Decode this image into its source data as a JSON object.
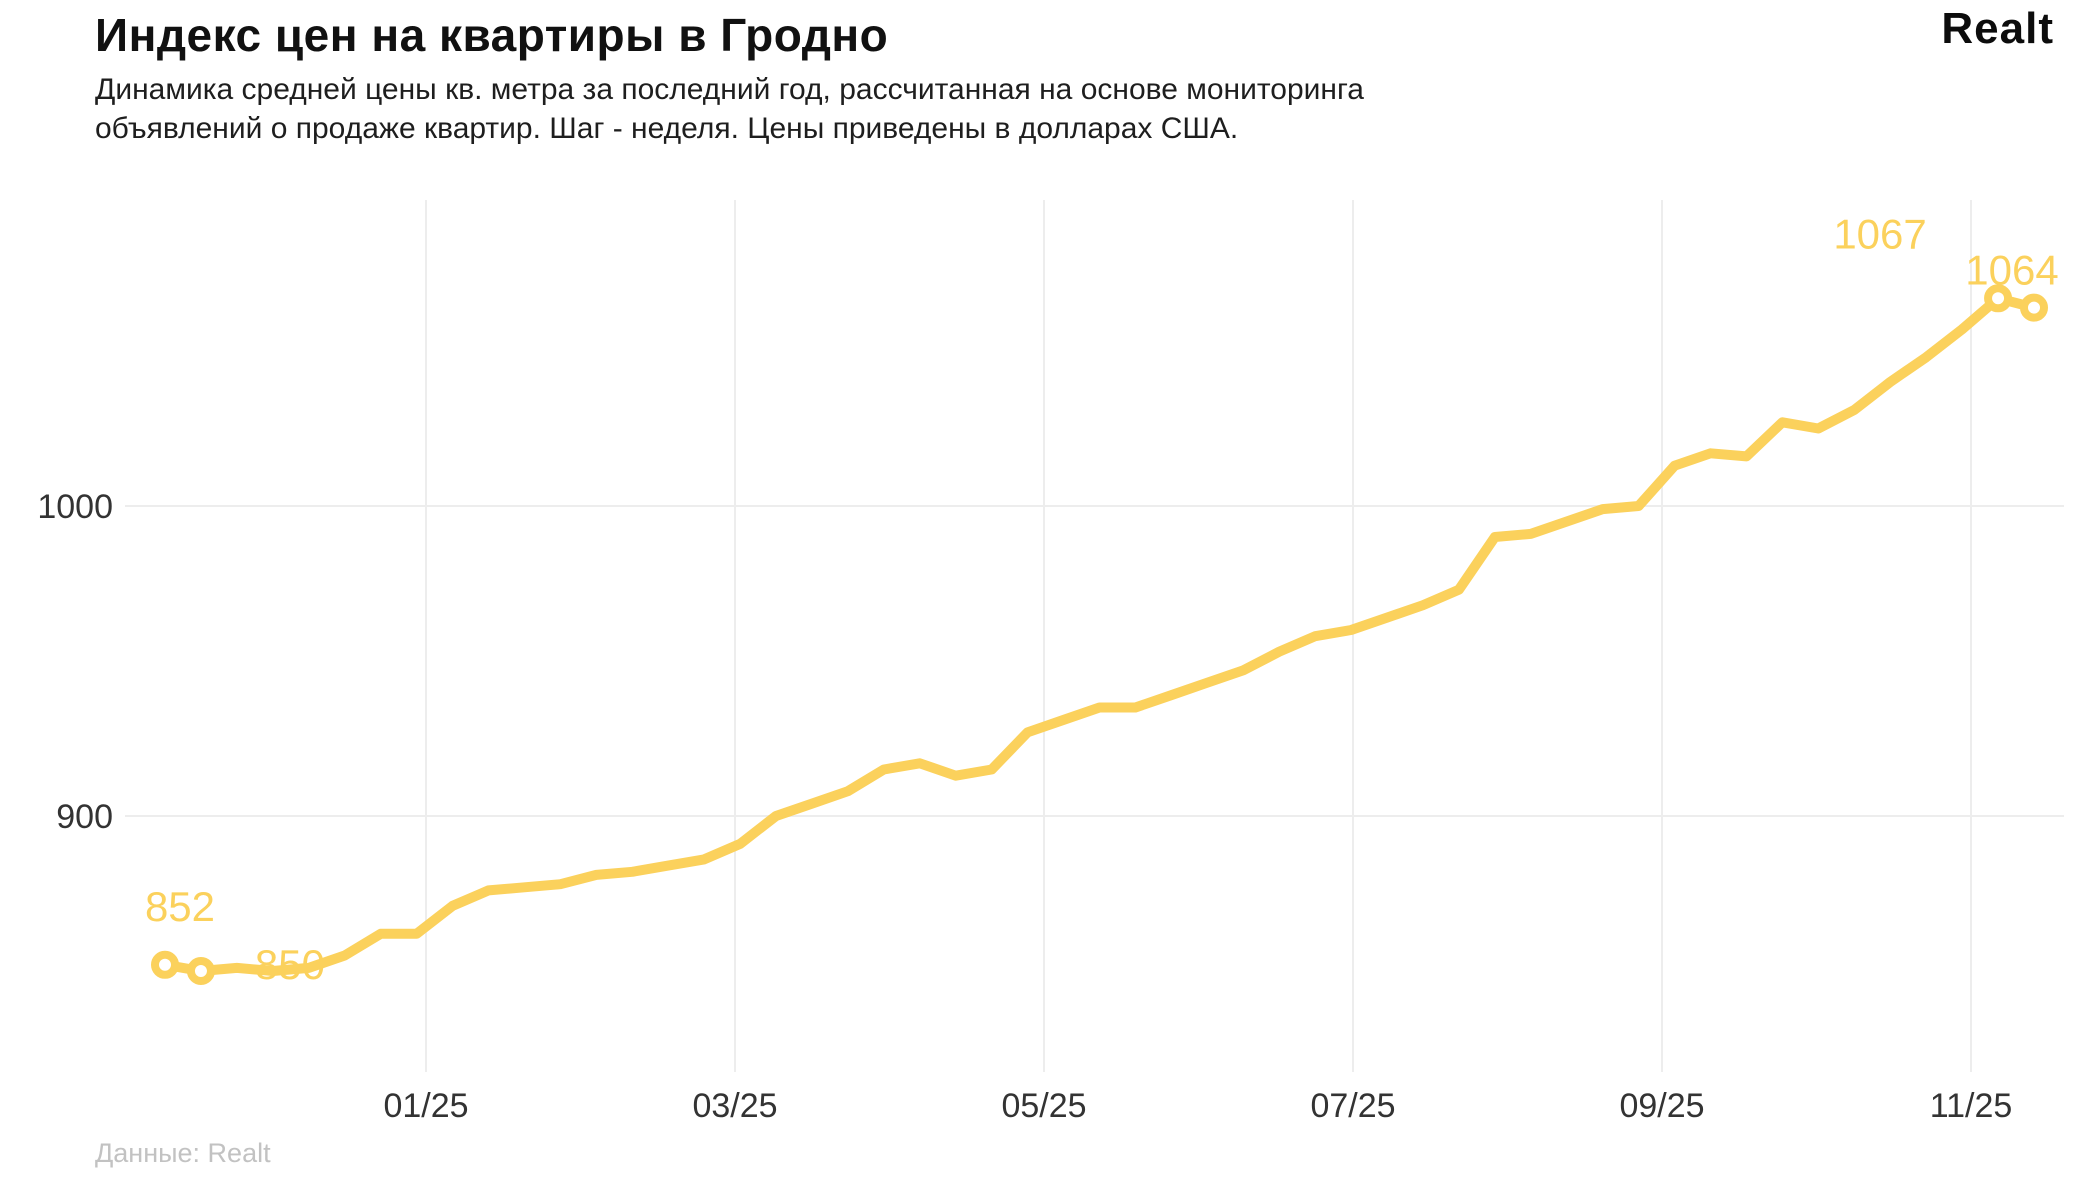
{
  "header": {
    "title": "Индекс цен на квартиры в Гродно",
    "subtitle_lines": [
      "Динамика средней цены кв. метра за последний год, рассчитанная на основе мониторинга",
      "объявлений о продаже квартир. Шаг - неделя. Цены приведены в долларах США."
    ],
    "brand": "Realt"
  },
  "footer": {
    "source": "Данные: Realt"
  },
  "colors": {
    "line": "#FBD15C",
    "grid": "#EDEDED",
    "axis_text": "#333333",
    "title_text": "#111111",
    "subtitle_text": "#1E1E1E",
    "source_text": "#C2C2C2"
  },
  "chart_data": {
    "type": "line",
    "title": "Индекс цен на квартиры в Гродно",
    "subtitle": "Динамика средней цены кв. метра за последний год, рассчитанная на основе мониторинга объявлений о продаже квартир. Шаг - неделя. Цены приведены в долларах США.",
    "source": "Данные: Realt",
    "xlabel": "",
    "ylabel": "",
    "x_step": "неделя",
    "x_tick_labels": [
      "01/25",
      "03/25",
      "05/25",
      "07/25",
      "09/25",
      "11/25"
    ],
    "y_tick_labels": [
      "900",
      "1000"
    ],
    "ylim": [
      818,
      1110
    ],
    "grid": true,
    "legend": false,
    "series": [
      {
        "name": "Средняя цена кв. метра, USD",
        "values": [
          852,
          850,
          851,
          850,
          851,
          855,
          862,
          862,
          871,
          876,
          877,
          878,
          881,
          882,
          884,
          886,
          891,
          900,
          904,
          908,
          915,
          917,
          913,
          915,
          927,
          931,
          935,
          935,
          939,
          943,
          947,
          953,
          958,
          960,
          964,
          968,
          973,
          990,
          991,
          995,
          999,
          1000,
          1013,
          1017,
          1016,
          1027,
          1025,
          1031,
          1040,
          1048,
          1057,
          1067,
          1064
        ]
      }
    ],
    "labeled_points": [
      {
        "index": 0,
        "value": 852
      },
      {
        "index": 1,
        "value": 850
      },
      {
        "index": 51,
        "value": 1067
      },
      {
        "index": 52,
        "value": 1064
      }
    ]
  }
}
